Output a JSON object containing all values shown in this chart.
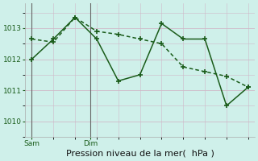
{
  "jagged_x": [
    0,
    1,
    2,
    3,
    4,
    5,
    6,
    7,
    8,
    9,
    10
  ],
  "jagged_y": [
    1012.0,
    1012.65,
    1013.35,
    1012.65,
    1011.3,
    1011.5,
    1013.15,
    1012.65,
    1012.65,
    1010.5,
    1011.1
  ],
  "trend_x": [
    0,
    1,
    2,
    3,
    4,
    5,
    6,
    7,
    8,
    9,
    10
  ],
  "trend_y": [
    1012.65,
    1012.55,
    1013.35,
    1012.9,
    1012.8,
    1012.65,
    1012.5,
    1011.75,
    1011.6,
    1011.45,
    1011.1
  ],
  "color": "#1a5c1a",
  "bg_color": "#cff0ea",
  "grid_color": "#d0b8c8",
  "xlabel": "Pression niveau de la mer(  hPa )",
  "yticks": [
    1010,
    1011,
    1012,
    1013
  ],
  "ylim": [
    1009.5,
    1013.8
  ],
  "xlim": [
    -0.3,
    10.3
  ],
  "sam_x": 0,
  "dim_x": 2.7,
  "vline_sam": 0.0,
  "vline_dim": 2.7,
  "markersize": 3.5,
  "linewidth": 1.1,
  "tick_fontsize": 6.5,
  "xlabel_fontsize": 8
}
